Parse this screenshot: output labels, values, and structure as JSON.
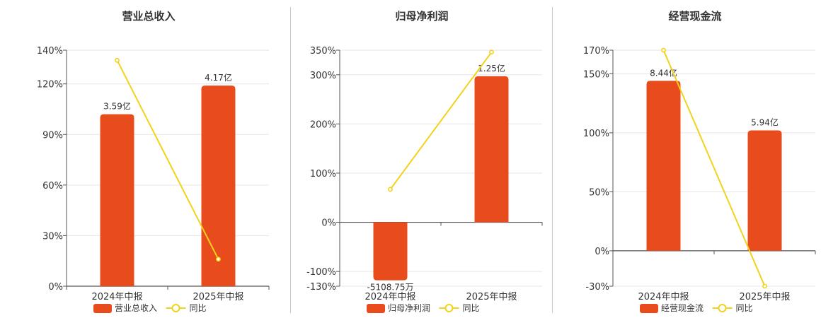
{
  "colors": {
    "bar": "#E84C1C",
    "line": "#F2D21B",
    "grid": "#e6e6e6",
    "axis": "#555555"
  },
  "chart_data": [
    {
      "type": "bar",
      "title": "营业总收入",
      "categories": [
        "2024年中报",
        "2025年中报"
      ],
      "series": [
        {
          "name": "营业总收入",
          "type": "bar",
          "values": [
            102,
            119
          ],
          "labels": [
            "3.59亿",
            "4.17亿"
          ]
        },
        {
          "name": "同比",
          "type": "line",
          "values": [
            134,
            16
          ]
        }
      ],
      "yticks": [
        0,
        30,
        60,
        90,
        120,
        140
      ],
      "ytick_labels": [
        "0%",
        "30%",
        "60%",
        "90%",
        "120%",
        "140%"
      ],
      "ylim": [
        0,
        140
      ],
      "grid": true,
      "legend": "bottom"
    },
    {
      "type": "bar",
      "title": "归母净利润",
      "categories": [
        "2024年中报",
        "2025年中报"
      ],
      "series": [
        {
          "name": "归母净利润",
          "type": "bar",
          "values": [
            -118,
            297
          ],
          "labels": [
            "-5108.75万",
            "1.25亿"
          ]
        },
        {
          "name": "同比",
          "type": "line",
          "values": [
            67,
            346
          ]
        }
      ],
      "yticks": [
        -130,
        -100,
        0,
        100,
        200,
        300,
        350
      ],
      "ytick_labels": [
        "-130%",
        "-100%",
        "0%",
        "100%",
        "200%",
        "300%",
        "350%"
      ],
      "ylim": [
        -130,
        350
      ],
      "grid": true,
      "legend": "bottom"
    },
    {
      "type": "bar",
      "title": "经营现金流",
      "categories": [
        "2024年中报",
        "2025年中报"
      ],
      "series": [
        {
          "name": "经营现金流",
          "type": "bar",
          "values": [
            144,
            102
          ],
          "labels": [
            "8.44亿",
            "5.94亿"
          ]
        },
        {
          "name": "同比",
          "type": "line",
          "values": [
            170,
            -30
          ]
        }
      ],
      "yticks": [
        -30,
        0,
        50,
        100,
        150,
        170
      ],
      "ytick_labels": [
        "-30%",
        "0%",
        "50%",
        "100%",
        "150%",
        "170%"
      ],
      "ylim": [
        -30,
        170
      ],
      "grid": true,
      "legend": "bottom"
    }
  ]
}
